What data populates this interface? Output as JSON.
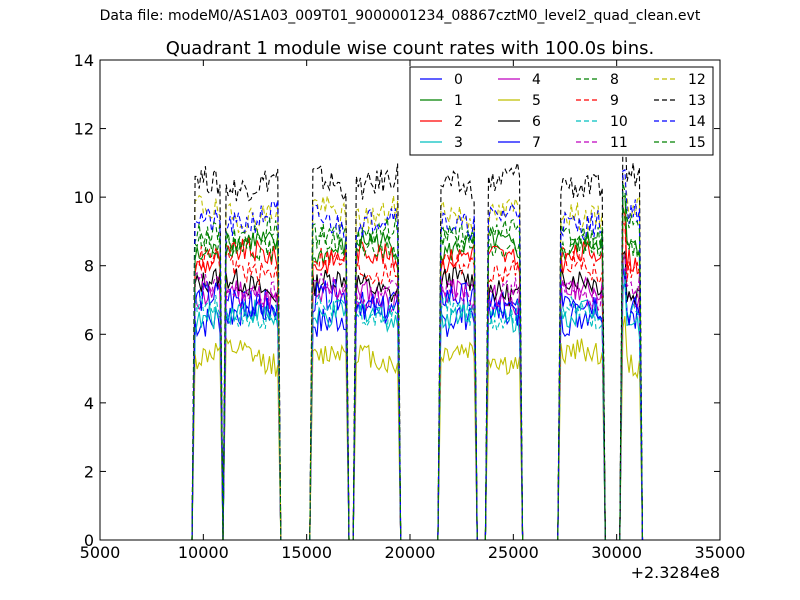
{
  "suptitle": "Data file: modeM0/AS1A03_009T01_9000001234_08867cztM0_level2_quad_clean.evt",
  "chart_data": {
    "type": "line",
    "title": "Quadrant 1 module wise count rates with 100.0s bins.",
    "xlabel": "",
    "ylabel": "",
    "x_offset_label": "+2.3284e8",
    "xlim": [
      5000,
      35000
    ],
    "ylim": [
      0,
      14
    ],
    "xticks": [
      "5000",
      "10000",
      "15000",
      "20000",
      "25000",
      "30000",
      "35000"
    ],
    "yticks": [
      "0",
      "2",
      "4",
      "6",
      "8",
      "10",
      "12",
      "14"
    ],
    "legend_position": "top-right",
    "legend_columns": 4,
    "observation_windows": [
      [
        9600,
        10800
      ],
      [
        11100,
        13600
      ],
      [
        15300,
        16900
      ],
      [
        17400,
        19400
      ],
      [
        21500,
        23100
      ],
      [
        23800,
        25300
      ],
      [
        27300,
        29300
      ],
      [
        30300,
        31100
      ]
    ],
    "series": [
      {
        "name": "0",
        "color": "#0000ff",
        "style": "solid",
        "level": 6.6,
        "noise": 0.5
      },
      {
        "name": "1",
        "color": "#008000",
        "style": "solid",
        "level": 8.5,
        "noise": 0.35
      },
      {
        "name": "2",
        "color": "#ff0000",
        "style": "solid",
        "level": 8.2,
        "noise": 0.35
      },
      {
        "name": "3",
        "color": "#00bfbf",
        "style": "solid",
        "level": 6.5,
        "noise": 0.4
      },
      {
        "name": "4",
        "color": "#bf00bf",
        "style": "solid",
        "level": 7.1,
        "noise": 0.35
      },
      {
        "name": "5",
        "color": "#bfbf00",
        "style": "solid",
        "level": 5.3,
        "noise": 0.35
      },
      {
        "name": "6",
        "color": "#000000",
        "style": "solid",
        "level": 7.4,
        "noise": 0.35
      },
      {
        "name": "7",
        "color": "#0000ff",
        "style": "solid",
        "level": 6.9,
        "noise": 0.45
      },
      {
        "name": "8",
        "color": "#008000",
        "style": "dashed",
        "level": 8.7,
        "noise": 0.35
      },
      {
        "name": "9",
        "color": "#ff0000",
        "style": "dashed",
        "level": 8.0,
        "noise": 0.35
      },
      {
        "name": "10",
        "color": "#00bfbf",
        "style": "dashed",
        "level": 6.7,
        "noise": 0.35
      },
      {
        "name": "11",
        "color": "#bf00bf",
        "style": "dashed",
        "level": 7.3,
        "noise": 0.35
      },
      {
        "name": "12",
        "color": "#bfbf00",
        "style": "dashed",
        "level": 9.6,
        "noise": 0.4
      },
      {
        "name": "13",
        "color": "#000000",
        "style": "dashed",
        "level": 10.5,
        "noise": 0.4
      },
      {
        "name": "14",
        "color": "#0000ff",
        "style": "dashed",
        "level": 9.4,
        "noise": 0.4
      },
      {
        "name": "15",
        "color": "#008000",
        "style": "dashed",
        "level": 8.9,
        "noise": 0.35
      }
    ]
  }
}
